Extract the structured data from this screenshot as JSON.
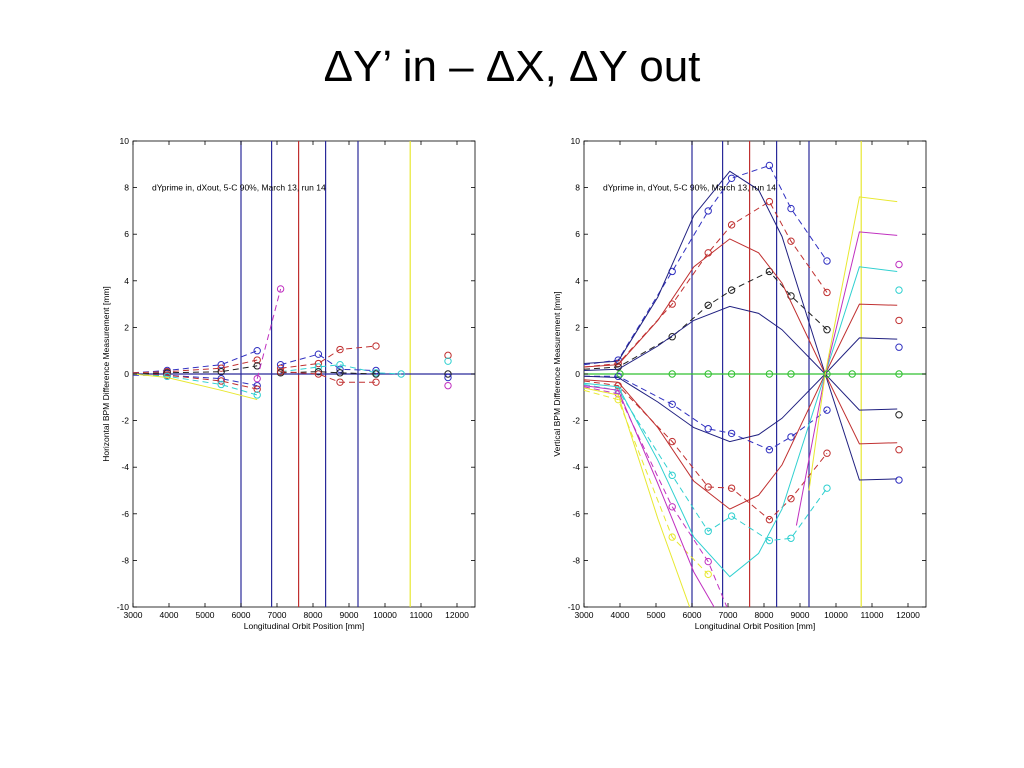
{
  "slide": {
    "title": "ΔY’ in – ΔX, ΔY out"
  },
  "chart_data": [
    {
      "type": "line",
      "title": "",
      "annotation": "dYprime in, dXout, 5-C 90%, March 13, run 14",
      "xlabel": "Longitudinal Orbit Position [mm]",
      "ylabel": "Horizontal BPM Difference Measurement [mm]",
      "xlim": [
        3000,
        12500
      ],
      "ylim": [
        -10,
        10
      ],
      "xticks": [
        3000,
        4000,
        5000,
        6000,
        7000,
        8000,
        9000,
        10000,
        11000,
        12000
      ],
      "yticks": [
        -10,
        -8,
        -6,
        -4,
        -2,
        0,
        2,
        4,
        6,
        8,
        10
      ],
      "grid": false,
      "vlines": [
        {
          "x": 6000,
          "color": "#2a2a9a"
        },
        {
          "x": 6850,
          "color": "#2a2a9a"
        },
        {
          "x": 7600,
          "color": "#c03030"
        },
        {
          "x": 8350,
          "color": "#2a2a9a"
        },
        {
          "x": 9250,
          "color": "#2a2a9a"
        },
        {
          "x": 10700,
          "color": "#e8e830"
        }
      ],
      "hlines": [
        {
          "y": 0,
          "color": "#2a2a9a"
        }
      ],
      "series": [
        {
          "color": "#3030c0",
          "style": "dashed",
          "x": [
            3000,
            3950,
            5450,
            6450
          ],
          "y": [
            0.05,
            0.15,
            0.4,
            1.0
          ]
        },
        {
          "color": "#c03030",
          "style": "dashed",
          "x": [
            3000,
            3950,
            5450,
            6450
          ],
          "y": [
            0.05,
            0.1,
            0.25,
            0.6
          ]
        },
        {
          "color": "#202020",
          "style": "dashed",
          "x": [
            3000,
            3950,
            5450,
            6450
          ],
          "y": [
            0.0,
            0.05,
            0.1,
            0.35
          ]
        },
        {
          "color": "#3030c0",
          "style": "dashed",
          "x": [
            3000,
            3950,
            5450,
            6450
          ],
          "y": [
            -0.05,
            -0.05,
            -0.2,
            -0.5
          ]
        },
        {
          "color": "#c03030",
          "style": "dashed",
          "x": [
            3000,
            3950,
            5450,
            6450
          ],
          "y": [
            0.0,
            -0.05,
            -0.3,
            -0.65
          ]
        },
        {
          "color": "#30d0d0",
          "style": "dashed",
          "x": [
            3000,
            3950,
            5450,
            6450
          ],
          "y": [
            0.0,
            -0.1,
            -0.45,
            -0.9
          ]
        },
        {
          "color": "#e8e830",
          "style": "solid",
          "x": [
            3000,
            3950,
            5450,
            6450
          ],
          "y": [
            0.0,
            -0.15,
            -0.7,
            -1.1
          ]
        },
        {
          "color": "#c030c0",
          "style": "dashed",
          "x": [
            6450,
            7100
          ],
          "y": [
            -0.2,
            3.65
          ]
        },
        {
          "color": "#c03030",
          "style": "dashed",
          "x": [
            7100,
            8150,
            8750,
            9750
          ],
          "y": [
            0.25,
            0.45,
            1.05,
            1.2
          ]
        },
        {
          "color": "#3030c0",
          "style": "dashed",
          "x": [
            7100,
            8150,
            8750,
            9750
          ],
          "y": [
            0.4,
            0.85,
            0.2,
            0.15
          ]
        },
        {
          "color": "#30d0d0",
          "style": "dashed",
          "x": [
            7100,
            8150,
            8750,
            9750,
            10450
          ],
          "y": [
            0.1,
            0.3,
            0.4,
            0.05,
            0.0
          ]
        },
        {
          "color": "#202020",
          "style": "dashed",
          "x": [
            7100,
            8150,
            8750,
            9750
          ],
          "y": [
            0.05,
            0.1,
            0.05,
            0.0
          ]
        },
        {
          "color": "#c03030",
          "style": "dashed",
          "x": [
            7100,
            8150,
            8750,
            9750
          ],
          "y": [
            0.1,
            0.0,
            -0.35,
            -0.35
          ]
        }
      ],
      "points": [
        {
          "x": 11750,
          "y": 0.8,
          "color": "#c03030"
        },
        {
          "x": 11750,
          "y": 0.55,
          "color": "#30d0d0"
        },
        {
          "x": 11750,
          "y": 0.0,
          "color": "#202020"
        },
        {
          "x": 11750,
          "y": -0.15,
          "color": "#3030c0"
        },
        {
          "x": 11750,
          "y": -0.5,
          "color": "#c030c0"
        }
      ]
    },
    {
      "type": "line",
      "title": "",
      "annotation": "dYprime in, dYout, 5-C 90%, March 13, run 14",
      "xlabel": "Longitudinal Orbit Position [mm]",
      "ylabel": "Vertical BPM Difference Measurement [mm]",
      "xlim": [
        3000,
        12500
      ],
      "ylim": [
        -10,
        10
      ],
      "xticks": [
        3000,
        4000,
        5000,
        6000,
        7000,
        8000,
        9000,
        10000,
        11000,
        12000
      ],
      "yticks": [
        -10,
        -8,
        -6,
        -4,
        -2,
        0,
        2,
        4,
        6,
        8,
        10
      ],
      "grid": false,
      "vlines": [
        {
          "x": 6000,
          "color": "#2a2a9a"
        },
        {
          "x": 6850,
          "color": "#2a2a9a"
        },
        {
          "x": 7600,
          "color": "#c03030"
        },
        {
          "x": 8350,
          "color": "#2a2a9a"
        },
        {
          "x": 9250,
          "color": "#2a2a9a"
        },
        {
          "x": 10700,
          "color": "#e8e830"
        }
      ],
      "hlines": [
        {
          "y": 0,
          "color": "#30c030"
        }
      ],
      "series": [
        {
          "color": "#3030c0",
          "style": "dashed",
          "x": [
            3000,
            3950,
            5450,
            6450,
            7100,
            8150,
            8750,
            9750
          ],
          "y": [
            0.4,
            0.6,
            4.4,
            7.0,
            8.4,
            8.95,
            7.1,
            4.85
          ]
        },
        {
          "color": "#c03030",
          "style": "dashed",
          "x": [
            3000,
            3950,
            5450,
            6450,
            7100,
            8150,
            8750,
            9750
          ],
          "y": [
            0.3,
            0.45,
            3.0,
            5.2,
            6.4,
            7.4,
            5.7,
            3.5
          ]
        },
        {
          "color": "#202020",
          "style": "dashed",
          "x": [
            3000,
            3950,
            5450,
            6450,
            7100,
            8150,
            8750,
            9750
          ],
          "y": [
            0.2,
            0.3,
            1.6,
            2.95,
            3.6,
            4.4,
            3.35,
            1.9
          ]
        },
        {
          "color": "#3030c0",
          "style": "dashed",
          "x": [
            3000,
            3950,
            5450,
            6450,
            7100,
            8150,
            8750,
            9750
          ],
          "y": [
            -0.1,
            -0.1,
            -1.3,
            -2.35,
            -2.55,
            -3.25,
            -2.7,
            -1.55
          ]
        },
        {
          "color": "#c03030",
          "style": "dashed",
          "x": [
            3000,
            3950,
            5450,
            6450,
            7100,
            8150,
            8750,
            9750
          ],
          "y": [
            -0.3,
            -0.5,
            -2.9,
            -4.85,
            -4.9,
            -6.25,
            -5.35,
            -3.4
          ]
        },
        {
          "color": "#30d0d0",
          "style": "dashed",
          "x": [
            3000,
            3950,
            5450,
            6450,
            7100,
            8150,
            8750,
            9750
          ],
          "y": [
            -0.45,
            -0.7,
            -4.35,
            -6.75,
            -6.1,
            -7.15,
            -7.05,
            -4.9
          ]
        },
        {
          "color": "#c030c0",
          "style": "dashed",
          "x": [
            3000,
            3950,
            5450,
            6450,
            7100
          ],
          "y": [
            -0.55,
            -0.85,
            -5.7,
            -8.05,
            -10.5
          ]
        },
        {
          "color": "#e8e830",
          "style": "dashed",
          "x": [
            3000,
            3950,
            5450,
            6450
          ],
          "y": [
            -0.7,
            -1.1,
            -7.0,
            -8.6
          ]
        },
        {
          "color": "#202080",
          "style": "solid",
          "x": [
            3000,
            3950,
            5050,
            6050,
            7050,
            7850,
            8500,
            9700,
            10650,
            11700
          ],
          "y": [
            0.45,
            0.55,
            3.3,
            6.8,
            8.7,
            7.9,
            5.9,
            0.0,
            -4.55,
            -4.5
          ]
        },
        {
          "color": "#c03030",
          "style": "solid",
          "x": [
            3000,
            3950,
            5050,
            6050,
            7050,
            7850,
            8500,
            9700,
            10650,
            11700
          ],
          "y": [
            0.3,
            0.4,
            2.3,
            4.6,
            5.8,
            5.2,
            3.9,
            0.0,
            -3.0,
            -2.95
          ]
        },
        {
          "color": "#202080",
          "style": "solid",
          "x": [
            3000,
            3950,
            5050,
            6050,
            7050,
            7850,
            8500,
            9700,
            10650,
            11700
          ],
          "y": [
            0.15,
            0.2,
            1.2,
            2.3,
            2.9,
            2.6,
            1.9,
            0.0,
            -1.55,
            -1.5
          ]
        },
        {
          "color": "#202080",
          "style": "solid",
          "x": [
            3000,
            3950,
            5050,
            6050,
            7050,
            7850,
            8500,
            9700,
            10650,
            11700
          ],
          "y": [
            -0.1,
            -0.15,
            -1.2,
            -2.3,
            -2.9,
            -2.6,
            -1.9,
            0.0,
            1.55,
            1.5
          ]
        },
        {
          "color": "#c03030",
          "style": "solid",
          "x": [
            3000,
            3950,
            5050,
            6050,
            7050,
            7850,
            8500,
            9700,
            10650,
            11700
          ],
          "y": [
            -0.25,
            -0.35,
            -2.3,
            -4.6,
            -5.8,
            -5.2,
            -3.9,
            0.0,
            3.0,
            2.95
          ]
        },
        {
          "color": "#30d0d0",
          "style": "solid",
          "x": [
            3000,
            3950,
            5050,
            6050,
            7050,
            7850,
            8500,
            9700,
            10650,
            11700
          ],
          "y": [
            -0.4,
            -0.55,
            -3.7,
            -7.0,
            -8.7,
            -7.7,
            -5.8,
            0.0,
            4.6,
            4.4
          ]
        },
        {
          "color": "#c030c0",
          "style": "solid",
          "x": [
            3000,
            3950,
            5050,
            6050,
            6800
          ],
          "y": [
            -0.5,
            -0.7,
            -4.7,
            -8.5,
            -10.5
          ]
        },
        {
          "color": "#c030c0",
          "style": "solid",
          "x": [
            8900,
            9700,
            10650,
            11700
          ],
          "y": [
            -6.5,
            0.0,
            6.1,
            5.95
          ]
        },
        {
          "color": "#e8e830",
          "style": "solid",
          "x": [
            3000,
            3950,
            5050,
            6050
          ],
          "y": [
            -0.6,
            -0.9,
            -6.2,
            -10.5
          ]
        },
        {
          "color": "#e8e830",
          "style": "solid",
          "x": [
            9250,
            9700,
            10650,
            11700
          ],
          "y": [
            -5.0,
            0.0,
            7.6,
            7.4
          ]
        }
      ],
      "green_markers": {
        "x": [
          4000,
          5450,
          6450,
          7100,
          8150,
          8750,
          9750,
          10450,
          11750
        ],
        "y": 0,
        "color": "#30c030"
      },
      "points": [
        {
          "x": 11750,
          "y": 4.7,
          "color": "#c030c0"
        },
        {
          "x": 11750,
          "y": 3.6,
          "color": "#30d0d0"
        },
        {
          "x": 11750,
          "y": 2.3,
          "color": "#c03030"
        },
        {
          "x": 11750,
          "y": 1.15,
          "color": "#3030c0"
        },
        {
          "x": 11750,
          "y": -1.75,
          "color": "#202020"
        },
        {
          "x": 11750,
          "y": -3.25,
          "color": "#c03030"
        },
        {
          "x": 11750,
          "y": -4.55,
          "color": "#3030c0"
        }
      ]
    }
  ]
}
